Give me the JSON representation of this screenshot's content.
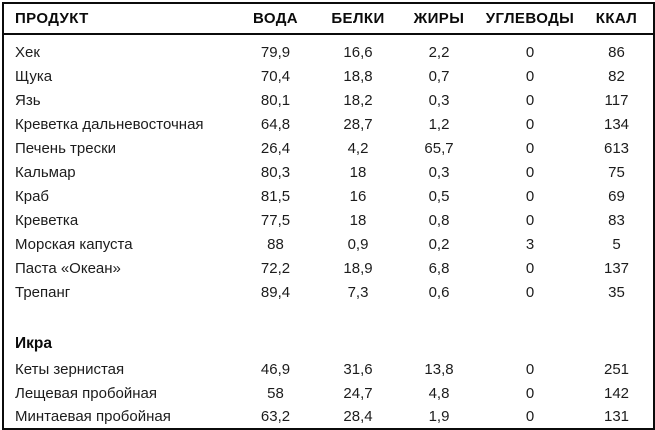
{
  "table": {
    "headers": [
      "ПРОДУКТ",
      "ВОДА",
      "БЕЛКИ",
      "ЖИРЫ",
      "УГЛЕВОДЫ",
      "ККАЛ"
    ],
    "rows": [
      {
        "type": "data",
        "name": "Хек",
        "values": [
          "79,9",
          "16,6",
          "2,2",
          "0",
          "86"
        ]
      },
      {
        "type": "data",
        "name": "Щука",
        "values": [
          "70,4",
          "18,8",
          "0,7",
          "0",
          "82"
        ]
      },
      {
        "type": "data",
        "name": "Язь",
        "values": [
          "80,1",
          "18,2",
          "0,3",
          "0",
          "117"
        ]
      },
      {
        "type": "data",
        "name": "Креветка дальневосточная",
        "values": [
          "64,8",
          "28,7",
          "1,2",
          "0",
          "134"
        ]
      },
      {
        "type": "data",
        "name": "Печень трески",
        "values": [
          "26,4",
          "4,2",
          "65,7",
          "0",
          "613"
        ]
      },
      {
        "type": "data",
        "name": "Кальмар",
        "values": [
          "80,3",
          "18",
          "0,3",
          "0",
          "75"
        ]
      },
      {
        "type": "data",
        "name": "Краб",
        "values": [
          "81,5",
          "16",
          "0,5",
          "0",
          "69"
        ]
      },
      {
        "type": "data",
        "name": "Креветка",
        "values": [
          "77,5",
          "18",
          "0,8",
          "0",
          "83"
        ]
      },
      {
        "type": "data",
        "name": "Морская капуста",
        "values": [
          "88",
          "0,9",
          "0,2",
          "3",
          "5"
        ]
      },
      {
        "type": "data",
        "name": "Паста «Океан»",
        "values": [
          "72,2",
          "18,9",
          "6,8",
          "0",
          "137"
        ]
      },
      {
        "type": "data",
        "name": "Трепанг",
        "values": [
          "89,4",
          "7,3",
          "0,6",
          "0",
          "35"
        ]
      },
      {
        "type": "blank",
        "name": "",
        "values": [
          "",
          "",
          "",
          "",
          ""
        ]
      },
      {
        "type": "section",
        "name": "Икра",
        "values": [
          "",
          "",
          "",
          "",
          ""
        ]
      },
      {
        "type": "data",
        "name": "Кеты зернистая",
        "values": [
          "46,9",
          "31,6",
          "13,8",
          "0",
          "251"
        ]
      },
      {
        "type": "data",
        "name": "Лещевая пробойная",
        "values": [
          "58",
          "24,7",
          "4,8",
          "0",
          "142"
        ]
      },
      {
        "type": "data",
        "name": "Минтаевая пробойная",
        "values": [
          "63,2",
          "28,4",
          "1,9",
          "0",
          "131"
        ]
      }
    ],
    "colors": {
      "border": "#0b0b0b",
      "header_text": "#0b0b0b",
      "body_text": "#1c1c1c",
      "background": "#ffffff"
    }
  }
}
